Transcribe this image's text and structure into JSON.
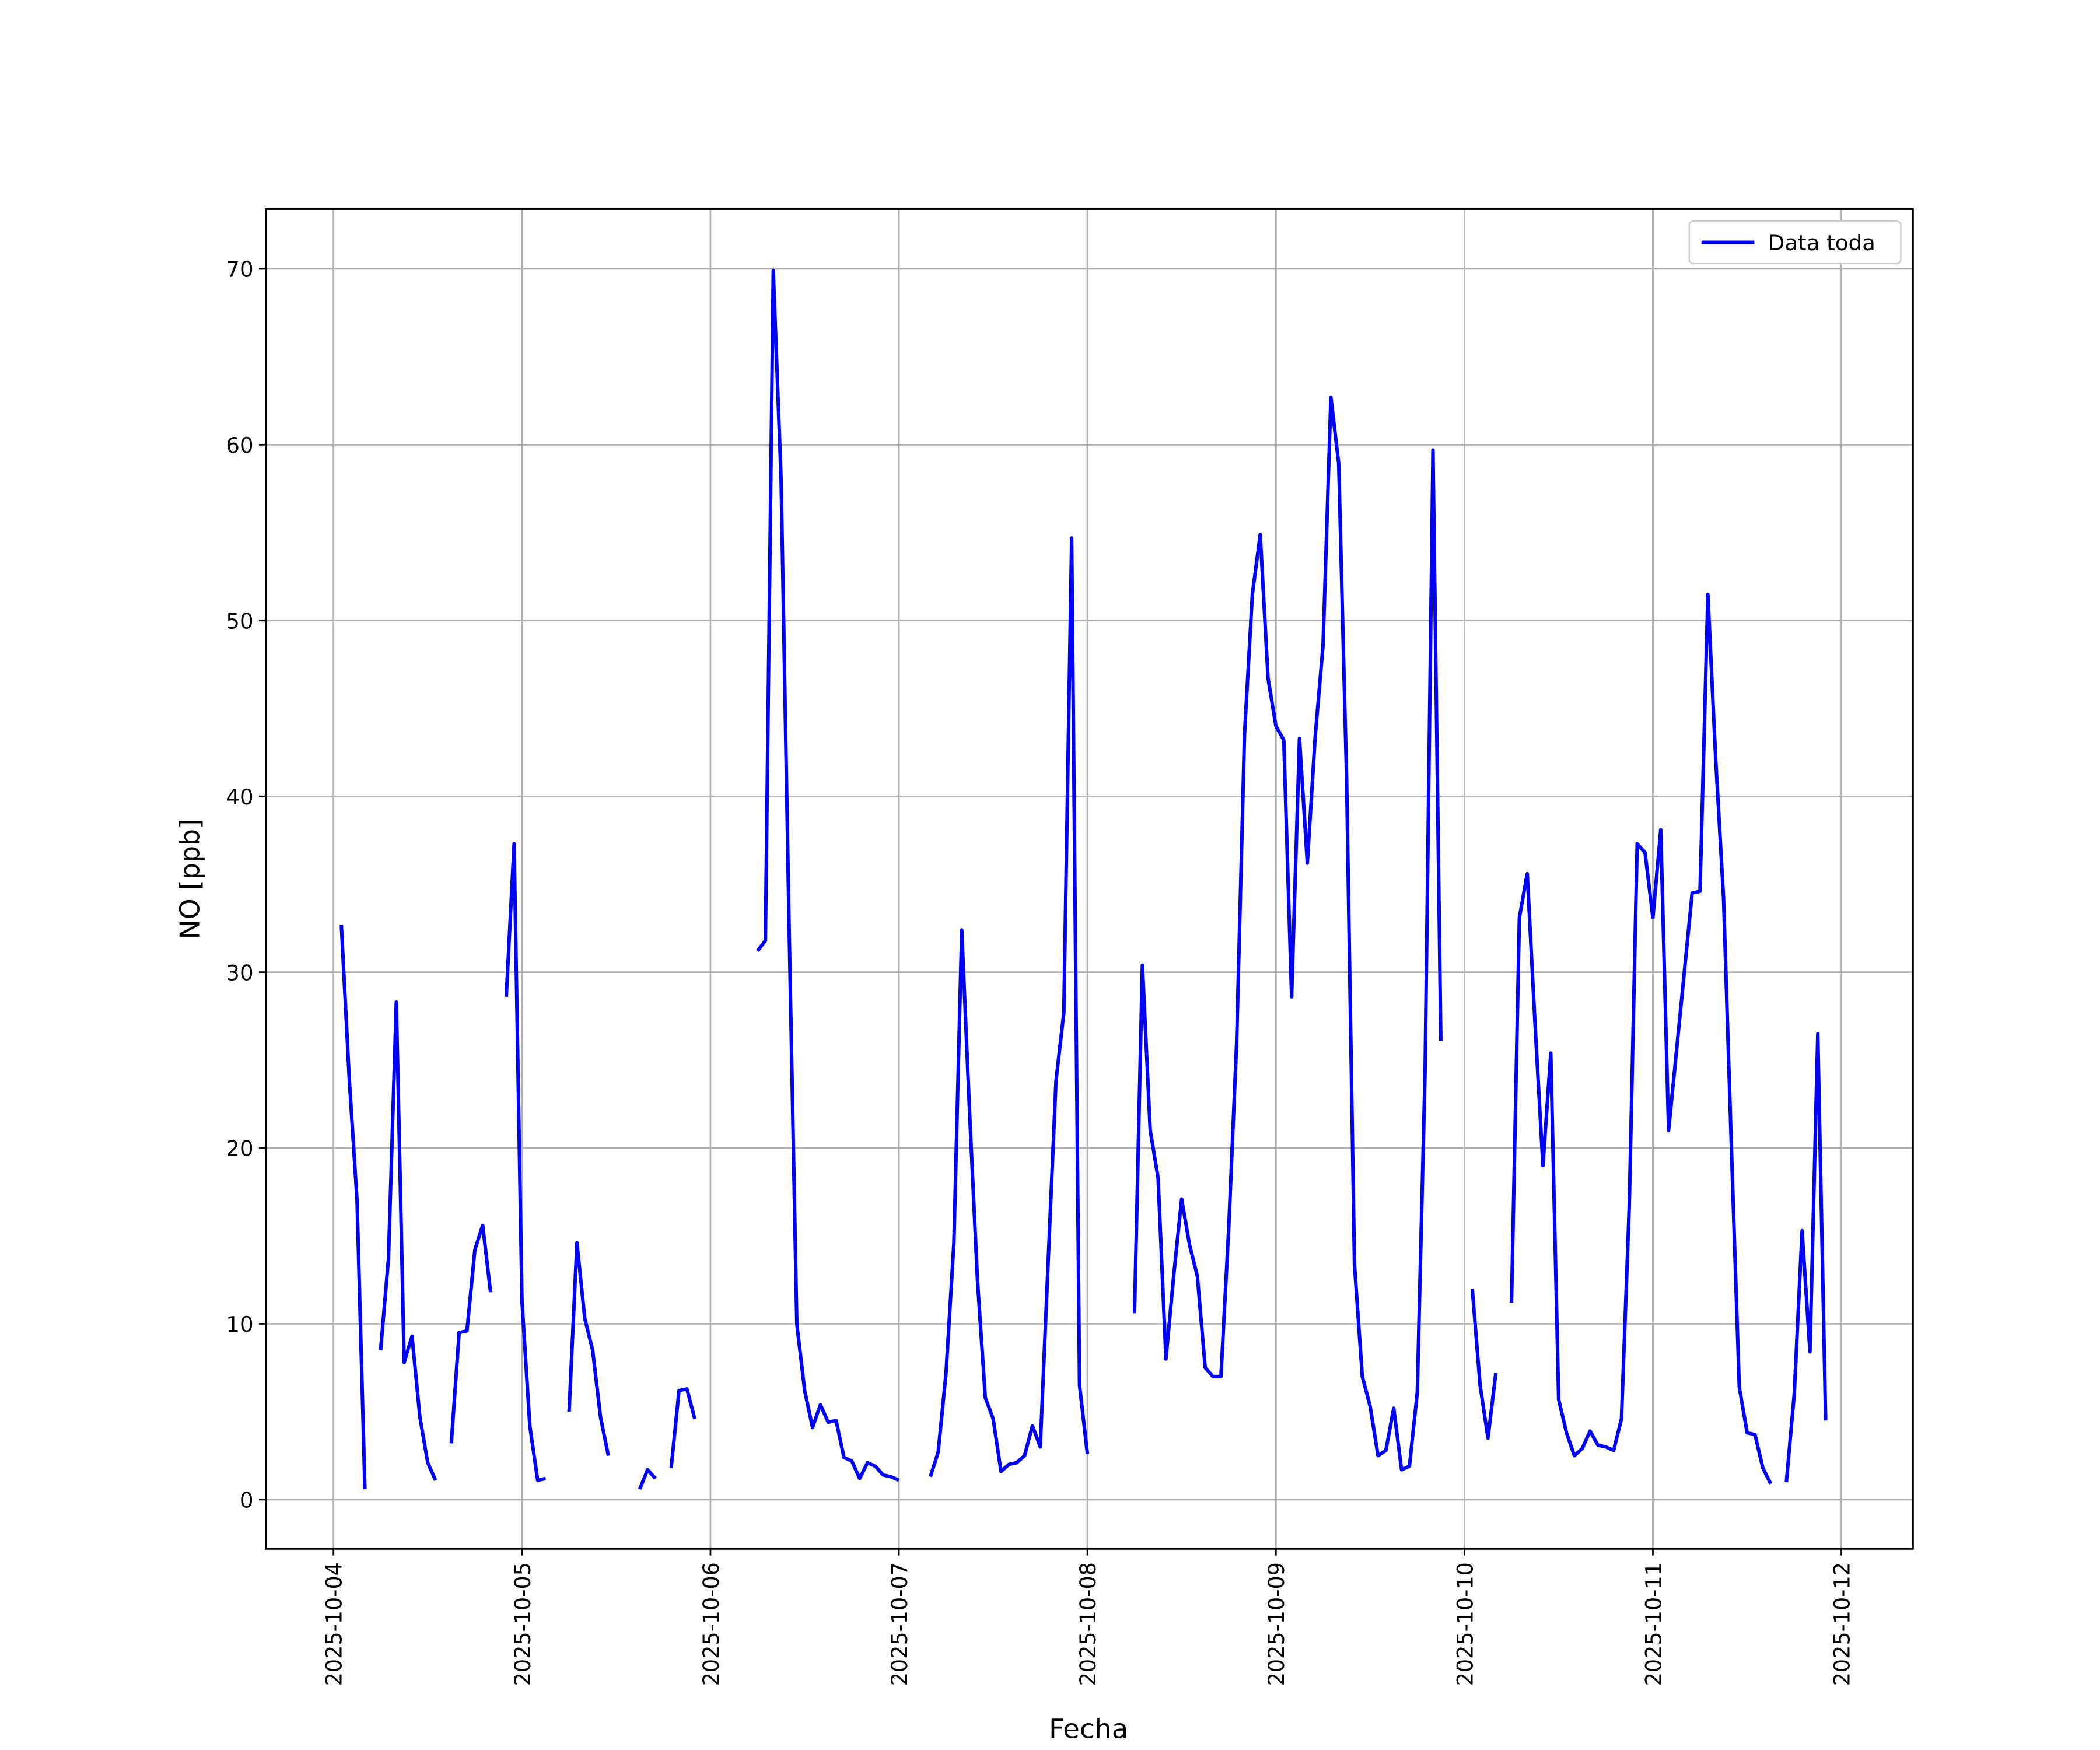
{
  "chart_data": {
    "type": "line",
    "xlabel": "Fecha",
    "ylabel": "NO [ppb]",
    "x": [
      "2025-10-04 01:00",
      "2025-10-04 02:00",
      "2025-10-04 03:00",
      "2025-10-04 04:00",
      "2025-10-04 05:00",
      "2025-10-04 06:00",
      "2025-10-04 07:00",
      "2025-10-04 08:00",
      "2025-10-04 09:00",
      "2025-10-04 10:00",
      "2025-10-04 11:00",
      "2025-10-04 12:00",
      "2025-10-04 13:00",
      "2025-10-04 14:00",
      "2025-10-04 15:00",
      "2025-10-04 16:00",
      "2025-10-04 17:00",
      "2025-10-04 18:00",
      "2025-10-04 19:00",
      "2025-10-04 20:00",
      "2025-10-04 21:00",
      "2025-10-04 22:00",
      "2025-10-04 23:00",
      "2025-10-05 00:00",
      "2025-10-05 01:00",
      "2025-10-05 02:00",
      "2025-10-05 03:00",
      "2025-10-05 04:00",
      "2025-10-05 06:00",
      "2025-10-05 07:00",
      "2025-10-05 08:00",
      "2025-10-05 09:00",
      "2025-10-05 10:00",
      "2025-10-05 11:00",
      "2025-10-05 12:00",
      "2025-10-05 15:00",
      "2025-10-05 16:00",
      "2025-10-05 17:00",
      "2025-10-05 18:00",
      "2025-10-05 19:00",
      "2025-10-05 20:00",
      "2025-10-05 21:00",
      "2025-10-05 22:00",
      "2025-10-05 23:00",
      "2025-10-06 06:00",
      "2025-10-06 07:00",
      "2025-10-06 08:00",
      "2025-10-06 09:00",
      "2025-10-06 10:00",
      "2025-10-06 11:00",
      "2025-10-06 12:00",
      "2025-10-06 13:00",
      "2025-10-06 14:00",
      "2025-10-06 15:00",
      "2025-10-06 16:00",
      "2025-10-06 17:00",
      "2025-10-06 18:00",
      "2025-10-06 19:00",
      "2025-10-06 20:00",
      "2025-10-06 21:00",
      "2025-10-06 22:00",
      "2025-10-06 23:00",
      "2025-10-07 00:00",
      "2025-10-07 01:00",
      "2025-10-07 04:00",
      "2025-10-07 05:00",
      "2025-10-07 06:00",
      "2025-10-07 07:00",
      "2025-10-07 08:00",
      "2025-10-07 09:00",
      "2025-10-07 10:00",
      "2025-10-07 11:00",
      "2025-10-07 12:00",
      "2025-10-07 13:00",
      "2025-10-07 14:00",
      "2025-10-07 15:00",
      "2025-10-07 16:00",
      "2025-10-07 17:00",
      "2025-10-07 18:00",
      "2025-10-07 19:00",
      "2025-10-07 20:00",
      "2025-10-07 21:00",
      "2025-10-07 22:00",
      "2025-10-07 23:00",
      "2025-10-08 00:00",
      "2025-10-08 01:00",
      "2025-10-08 06:00",
      "2025-10-08 07:00",
      "2025-10-08 08:00",
      "2025-10-08 09:00",
      "2025-10-08 10:00",
      "2025-10-08 11:00",
      "2025-10-08 12:00",
      "2025-10-08 13:00",
      "2025-10-08 14:00",
      "2025-10-08 15:00",
      "2025-10-08 16:00",
      "2025-10-08 17:00",
      "2025-10-08 18:00",
      "2025-10-08 19:00",
      "2025-10-08 20:00",
      "2025-10-08 21:00",
      "2025-10-08 22:00",
      "2025-10-08 23:00",
      "2025-10-09 00:00",
      "2025-10-09 01:00",
      "2025-10-09 02:00",
      "2025-10-09 03:00",
      "2025-10-09 04:00",
      "2025-10-09 05:00",
      "2025-10-09 06:00",
      "2025-10-09 07:00",
      "2025-10-09 08:00",
      "2025-10-09 09:00",
      "2025-10-09 10:00",
      "2025-10-09 11:00",
      "2025-10-09 12:00",
      "2025-10-09 13:00",
      "2025-10-09 14:00",
      "2025-10-09 15:00",
      "2025-10-09 16:00",
      "2025-10-09 17:00",
      "2025-10-09 18:00",
      "2025-10-09 19:00",
      "2025-10-09 20:00",
      "2025-10-09 21:00",
      "2025-10-09 22:00",
      "2025-10-10 01:00",
      "2025-10-10 02:00",
      "2025-10-10 03:00",
      "2025-10-10 04:00",
      "2025-10-10 05:00",
      "2025-10-10 06:00",
      "2025-10-10 07:00",
      "2025-10-10 08:00",
      "2025-10-10 09:00",
      "2025-10-10 10:00",
      "2025-10-10 11:00",
      "2025-10-10 12:00",
      "2025-10-10 13:00",
      "2025-10-10 14:00",
      "2025-10-10 15:00",
      "2025-10-10 16:00",
      "2025-10-10 17:00",
      "2025-10-10 18:00",
      "2025-10-10 19:00",
      "2025-10-10 20:00",
      "2025-10-10 21:00",
      "2025-10-10 22:00",
      "2025-10-10 23:00",
      "2025-10-11 00:00",
      "2025-10-11 01:00",
      "2025-10-11 02:00",
      "2025-10-11 03:00",
      "2025-10-11 04:00",
      "2025-10-11 05:00",
      "2025-10-11 06:00",
      "2025-10-11 07:00",
      "2025-10-11 08:00",
      "2025-10-11 09:00",
      "2025-10-11 10:00",
      "2025-10-11 11:00",
      "2025-10-11 12:00",
      "2025-10-11 13:00",
      "2025-10-11 14:00",
      "2025-10-11 15:00",
      "2025-10-11 16:00",
      "2025-10-11 17:00",
      "2025-10-11 18:00",
      "2025-10-11 19:00",
      "2025-10-11 20:00",
      "2025-10-11 21:00",
      "2025-10-11 22:00"
    ],
    "series": [
      {
        "name": "Data toda",
        "color": "#0000ff",
        "values": [
          32.7,
          24,
          17,
          0.6,
          null,
          8.5,
          13.7,
          28.3,
          7.8,
          9.3,
          4.7,
          2.1,
          1.1,
          null,
          3.2,
          9.5,
          9.6,
          14.2,
          15.6,
          11.8,
          null,
          28.6,
          37.3,
          11.3,
          4.2,
          1.1,
          1.2,
          null,
          5.0,
          14.6,
          10.3,
          8.5,
          4.7,
          2.5,
          null,
          0.6,
          1.7,
          1.2,
          null,
          1.8,
          6.2,
          6.3,
          4.6,
          null,
          31.2,
          31.8,
          69.9,
          58,
          33,
          10.0,
          6.2,
          4.1,
          5.4,
          4.4,
          4.5,
          2.4,
          2.2,
          1.2,
          2.1,
          1.9,
          1.4,
          1.3,
          1.1,
          null,
          1.3,
          2.7,
          7.2,
          14.6,
          32.4,
          22,
          12.5,
          5.8,
          4.6,
          1.6,
          2.0,
          2.1,
          2.5,
          4.2,
          3.0,
          13.5,
          23.8,
          27.7,
          54.7,
          6.5,
          2.6,
          null,
          10.6,
          30.4,
          21.0,
          18.3,
          8.0,
          12.8,
          17.1,
          14.5,
          12.7,
          7.5,
          7.0,
          7.0,
          15.5,
          26,
          43.5,
          51.5,
          54.9,
          46.7,
          44.0,
          43.2,
          28.6,
          43.3,
          36.2,
          43.4,
          48.6,
          62.7,
          58.9,
          41,
          13.4,
          7.0,
          5.3,
          2.5,
          2.8,
          5.2,
          1.7,
          1.9,
          6.1,
          24.5,
          59.7,
          26.1,
          null,
          12.0,
          6.5,
          3.5,
          7.2,
          null,
          11.2,
          33.1,
          35.6,
          27,
          19.0,
          25.4,
          5.7,
          3.8,
          2.5,
          2.9,
          3.9,
          3.1,
          3.0,
          2.8,
          4.6,
          16.8,
          37.3,
          36.8,
          33.1,
          38.1,
          21.0,
          25.5,
          30,
          34.5,
          34.6,
          51.5,
          42.1,
          34.2,
          20,
          6.4,
          3.8,
          3.7,
          1.8,
          0.9,
          null,
          1.0,
          6.0,
          15.3,
          8.4,
          26.5,
          4.5
        ]
      }
    ],
    "xlim": [
      "2025-10-03 15:22",
      "2025-10-12 09:07"
    ],
    "xticks": [
      "2025-10-04",
      "2025-10-05",
      "2025-10-06",
      "2025-10-07",
      "2025-10-08",
      "2025-10-09",
      "2025-10-10",
      "2025-10-11",
      "2025-10-12"
    ],
    "ylim": [
      -2.8,
      73.4
    ],
    "yticks": [
      0,
      10,
      20,
      30,
      40,
      50,
      60,
      70
    ],
    "grid": true,
    "legend": "upper right"
  }
}
